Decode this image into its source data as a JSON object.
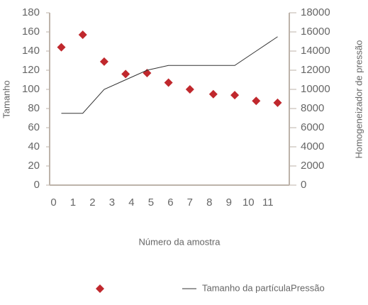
{
  "chart_data": {
    "type": "scatter",
    "xlabel": "Número da amostra",
    "ylabel": "Tamanho",
    "y2label": "Homogeneizador de pressão",
    "xlim": [
      -0.2,
      12.1
    ],
    "xticks": [
      0,
      1,
      2,
      3,
      4,
      5,
      6,
      7,
      8,
      9,
      10,
      11
    ],
    "ylim": [
      0,
      180
    ],
    "yticks": [
      0,
      20,
      40,
      60,
      80,
      100,
      120,
      140,
      160,
      180
    ],
    "y2lim": [
      0,
      18000
    ],
    "y2ticks": [
      0,
      2000,
      4000,
      6000,
      8000,
      10000,
      12000,
      14000,
      16000,
      18000
    ],
    "series": [
      {
        "type": "scatter",
        "color": "#c0282d",
        "x": [
          0.4,
          1.5,
          2.6,
          3.7,
          4.8,
          5.9,
          7,
          8.2,
          9.3,
          10.4,
          11.5
        ],
        "values": [
          144,
          157,
          129,
          116,
          117,
          107,
          100,
          95,
          94,
          88,
          86
        ]
      },
      {
        "type": "line",
        "name": "Tamanho da partículaPressão",
        "color": "#333333",
        "axis": "y2",
        "x": [
          0.4,
          1.5,
          2.6,
          3.7,
          4.8,
          5.9,
          7,
          8.2,
          9.3,
          10.4,
          11.5
        ],
        "values": [
          7500,
          7500,
          10000,
          11000,
          12000,
          12500,
          12500,
          12500,
          12500,
          14000,
          15500
        ]
      }
    ]
  }
}
